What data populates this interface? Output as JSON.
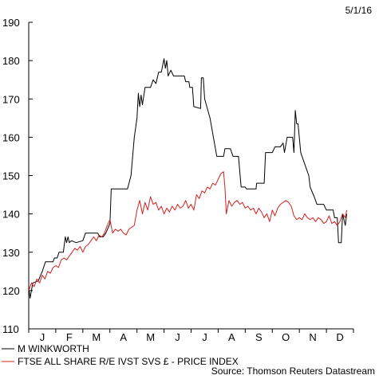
{
  "chart_data": {
    "type": "line",
    "date_label": "5/1/16",
    "source": "Source: Thomson Reuters Datastream",
    "x_ticks": [
      "J",
      "F",
      "M",
      "A",
      "M",
      "J",
      "J",
      "A",
      "S",
      "O",
      "N",
      "D"
    ],
    "y_ticks": [
      110,
      120,
      130,
      140,
      150,
      160,
      170,
      180,
      190
    ],
    "ylim": [
      110,
      190
    ],
    "x_range_months": [
      0,
      12
    ],
    "grid": false,
    "legend_position": "bottom-left",
    "series": [
      {
        "name": "M WINKWORTH",
        "color": "#000000",
        "points": [
          [
            0.0,
            121.0
          ],
          [
            0.05,
            118.0
          ],
          [
            0.15,
            122.0
          ],
          [
            0.35,
            122.5
          ],
          [
            0.5,
            125.0
          ],
          [
            0.62,
            127.5
          ],
          [
            0.9,
            127.5
          ],
          [
            0.95,
            128.5
          ],
          [
            1.05,
            128.5
          ],
          [
            1.12,
            130.0
          ],
          [
            1.28,
            130.0
          ],
          [
            1.35,
            134.0
          ],
          [
            1.4,
            132.5
          ],
          [
            1.45,
            134.0
          ],
          [
            1.5,
            132.5
          ],
          [
            1.58,
            133.0
          ],
          [
            1.75,
            132.5
          ],
          [
            2.0,
            133.0
          ],
          [
            2.1,
            135.0
          ],
          [
            2.55,
            135.0
          ],
          [
            2.62,
            134.0
          ],
          [
            2.75,
            134.0
          ],
          [
            2.85,
            135.0
          ],
          [
            3.0,
            137.5
          ],
          [
            3.05,
            146.5
          ],
          [
            3.65,
            146.5
          ],
          [
            3.78,
            150.0
          ],
          [
            3.9,
            160.0
          ],
          [
            4.0,
            165.0
          ],
          [
            4.05,
            171.5
          ],
          [
            4.1,
            168.0
          ],
          [
            4.15,
            171.0
          ],
          [
            4.2,
            168.5
          ],
          [
            4.3,
            173.0
          ],
          [
            4.5,
            173.0
          ],
          [
            4.6,
            175.0
          ],
          [
            4.7,
            174.0
          ],
          [
            4.8,
            177.0
          ],
          [
            4.9,
            177.0
          ],
          [
            5.0,
            180.5
          ],
          [
            5.05,
            178.0
          ],
          [
            5.1,
            180.0
          ],
          [
            5.15,
            176.0
          ],
          [
            5.25,
            177.5
          ],
          [
            5.35,
            176.0
          ],
          [
            5.75,
            176.0
          ],
          [
            5.8,
            174.5
          ],
          [
            5.92,
            174.5
          ],
          [
            5.95,
            173.0
          ],
          [
            6.05,
            173.0
          ],
          [
            6.1,
            168.0
          ],
          [
            6.35,
            167.5
          ],
          [
            6.38,
            175.5
          ],
          [
            6.45,
            175.5
          ],
          [
            6.5,
            170.0
          ],
          [
            6.7,
            165.0
          ],
          [
            6.95,
            155.0
          ],
          [
            7.2,
            155.0
          ],
          [
            7.25,
            157.0
          ],
          [
            7.45,
            157.0
          ],
          [
            7.55,
            155.0
          ],
          [
            7.75,
            155.0
          ],
          [
            7.85,
            147.0
          ],
          [
            8.0,
            147.0
          ],
          [
            8.05,
            146.5
          ],
          [
            8.4,
            146.5
          ],
          [
            8.42,
            148.0
          ],
          [
            8.7,
            148.0
          ],
          [
            8.75,
            156.0
          ],
          [
            9.0,
            156.0
          ],
          [
            9.1,
            157.5
          ],
          [
            9.3,
            157.5
          ],
          [
            9.4,
            158.5
          ],
          [
            9.45,
            156.0
          ],
          [
            9.55,
            160.0
          ],
          [
            9.75,
            160.0
          ],
          [
            9.8,
            156.0
          ],
          [
            9.85,
            167.0
          ],
          [
            9.9,
            163.5
          ],
          [
            9.95,
            163.5
          ],
          [
            10.05,
            156.0
          ],
          [
            10.2,
            153.0
          ],
          [
            10.35,
            150.0
          ],
          [
            10.4,
            147.0
          ],
          [
            10.55,
            144.5
          ],
          [
            10.65,
            142.5
          ],
          [
            10.9,
            142.5
          ],
          [
            11.0,
            141.0
          ],
          [
            11.25,
            141.0
          ],
          [
            11.3,
            139.0
          ],
          [
            11.4,
            139.0
          ],
          [
            11.45,
            132.5
          ],
          [
            11.55,
            132.5
          ],
          [
            11.6,
            140.0
          ],
          [
            11.7,
            137.0
          ],
          [
            11.75,
            140.0
          ]
        ]
      },
      {
        "name": "FTSE ALL SHARE R/E IVST SVS £ - PRICE INDEX",
        "color": "#d42020",
        "points": [
          [
            0.0,
            120.0
          ],
          [
            0.1,
            122.0
          ],
          [
            0.2,
            121.0
          ],
          [
            0.3,
            123.0
          ],
          [
            0.4,
            122.0
          ],
          [
            0.5,
            124.0
          ],
          [
            0.6,
            123.0
          ],
          [
            0.7,
            125.0
          ],
          [
            0.8,
            124.5
          ],
          [
            0.9,
            126.0
          ],
          [
            1.0,
            126.5
          ],
          [
            1.1,
            126.0
          ],
          [
            1.2,
            128.0
          ],
          [
            1.3,
            128.5
          ],
          [
            1.4,
            128.0
          ],
          [
            1.5,
            129.0
          ],
          [
            1.6,
            130.0
          ],
          [
            1.7,
            131.0
          ],
          [
            1.8,
            130.5
          ],
          [
            1.9,
            131.5
          ],
          [
            2.0,
            130.0
          ],
          [
            2.1,
            131.5
          ],
          [
            2.2,
            132.0
          ],
          [
            2.3,
            133.0
          ],
          [
            2.4,
            134.0
          ],
          [
            2.5,
            133.0
          ],
          [
            2.6,
            134.5
          ],
          [
            2.7,
            134.0
          ],
          [
            2.8,
            135.0
          ],
          [
            2.9,
            137.0
          ],
          [
            3.0,
            138.5
          ],
          [
            3.1,
            135.0
          ],
          [
            3.2,
            136.0
          ],
          [
            3.3,
            135.5
          ],
          [
            3.4,
            136.0
          ],
          [
            3.5,
            135.0
          ],
          [
            3.6,
            134.5
          ],
          [
            3.7,
            136.0
          ],
          [
            3.8,
            136.5
          ],
          [
            3.9,
            137.0
          ],
          [
            4.0,
            141.0
          ],
          [
            4.1,
            143.5
          ],
          [
            4.2,
            140.0
          ],
          [
            4.3,
            143.0
          ],
          [
            4.4,
            141.0
          ],
          [
            4.5,
            144.5
          ],
          [
            4.6,
            142.5
          ],
          [
            4.7,
            143.0
          ],
          [
            4.8,
            141.0
          ],
          [
            4.9,
            142.0
          ],
          [
            5.0,
            140.0
          ],
          [
            5.1,
            141.5
          ],
          [
            5.2,
            140.5
          ],
          [
            5.3,
            142.0
          ],
          [
            5.4,
            141.0
          ],
          [
            5.5,
            142.5
          ],
          [
            5.6,
            141.5
          ],
          [
            5.7,
            142.0
          ],
          [
            5.8,
            143.5
          ],
          [
            5.9,
            141.5
          ],
          [
            6.0,
            142.5
          ],
          [
            6.1,
            141.0
          ],
          [
            6.2,
            145.0
          ],
          [
            6.3,
            144.0
          ],
          [
            6.4,
            146.0
          ],
          [
            6.5,
            145.5
          ],
          [
            6.6,
            147.0
          ],
          [
            6.7,
            146.5
          ],
          [
            6.8,
            148.0
          ],
          [
            6.9,
            147.5
          ],
          [
            7.0,
            149.0
          ],
          [
            7.1,
            150.5
          ],
          [
            7.2,
            151.0
          ],
          [
            7.25,
            147.0
          ],
          [
            7.3,
            140.0
          ],
          [
            7.4,
            143.5
          ],
          [
            7.5,
            142.0
          ],
          [
            7.6,
            143.0
          ],
          [
            7.7,
            143.5
          ],
          [
            7.8,
            142.5
          ],
          [
            7.9,
            143.0
          ],
          [
            8.0,
            141.5
          ],
          [
            8.1,
            142.0
          ],
          [
            8.2,
            141.0
          ],
          [
            8.3,
            141.5
          ],
          [
            8.4,
            140.0
          ],
          [
            8.5,
            141.5
          ],
          [
            8.6,
            140.5
          ],
          [
            8.7,
            139.0
          ],
          [
            8.8,
            140.0
          ],
          [
            8.9,
            138.0
          ],
          [
            9.0,
            141.0
          ],
          [
            9.1,
            139.5
          ],
          [
            9.2,
            141.5
          ],
          [
            9.3,
            142.5
          ],
          [
            9.4,
            143.0
          ],
          [
            9.5,
            143.5
          ],
          [
            9.6,
            143.0
          ],
          [
            9.7,
            142.0
          ],
          [
            9.8,
            139.5
          ],
          [
            9.9,
            138.5
          ],
          [
            10.0,
            139.0
          ],
          [
            10.1,
            138.5
          ],
          [
            10.2,
            140.0
          ],
          [
            10.3,
            139.0
          ],
          [
            10.4,
            138.5
          ],
          [
            10.5,
            139.0
          ],
          [
            10.6,
            138.0
          ],
          [
            10.7,
            139.0
          ],
          [
            10.8,
            138.5
          ],
          [
            10.9,
            137.5
          ],
          [
            11.0,
            138.0
          ],
          [
            11.1,
            139.5
          ],
          [
            11.2,
            137.5
          ],
          [
            11.3,
            138.0
          ],
          [
            11.4,
            137.0
          ],
          [
            11.5,
            138.0
          ],
          [
            11.6,
            140.0
          ],
          [
            11.7,
            139.0
          ],
          [
            11.75,
            141.0
          ]
        ]
      }
    ]
  }
}
